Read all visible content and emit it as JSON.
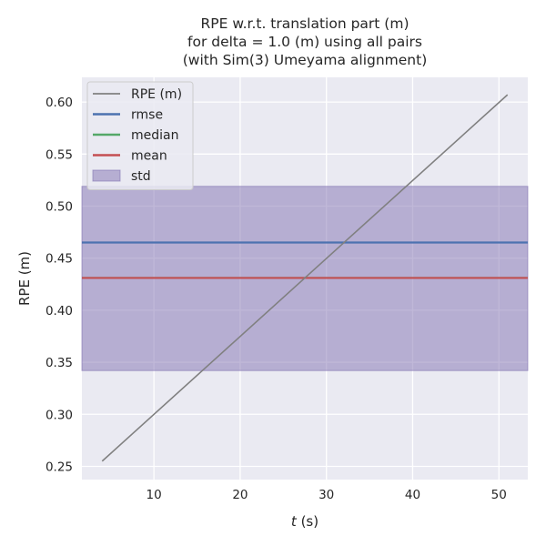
{
  "chart_data": {
    "type": "line",
    "title_lines": [
      "RPE w.r.t. translation part (m)",
      "for delta = 1.0 (m) using all pairs",
      "(with Sim(3) Umeyama alignment)"
    ],
    "xlabel_var": "t",
    "xlabel_unit": " (s)",
    "ylabel": "RPE (m)",
    "xlim": [
      1.65,
      53.35
    ],
    "ylim": [
      0.2373,
      0.6237
    ],
    "xticks": [
      10,
      20,
      30,
      40,
      50
    ],
    "yticks": [
      0.25,
      0.3,
      0.35,
      0.4,
      0.45,
      0.5,
      0.55,
      0.6
    ],
    "grid": true,
    "legend_position": "top-left",
    "series": [
      {
        "name": "RPE (m)",
        "kind": "line",
        "color": "#808080",
        "x": [
          4,
          51
        ],
        "y": [
          0.255,
          0.607
        ]
      },
      {
        "name": "rmse",
        "kind": "hline",
        "color": "#4c72b0",
        "y": 0.465
      },
      {
        "name": "median",
        "kind": "hline",
        "color": "#55a868",
        "y": 0.431
      },
      {
        "name": "mean",
        "kind": "hline",
        "color": "#c44e52",
        "y": 0.431
      },
      {
        "name": "std",
        "kind": "band",
        "color": "#8172b2",
        "y_low": 0.342,
        "y_high": 0.519
      }
    ]
  }
}
